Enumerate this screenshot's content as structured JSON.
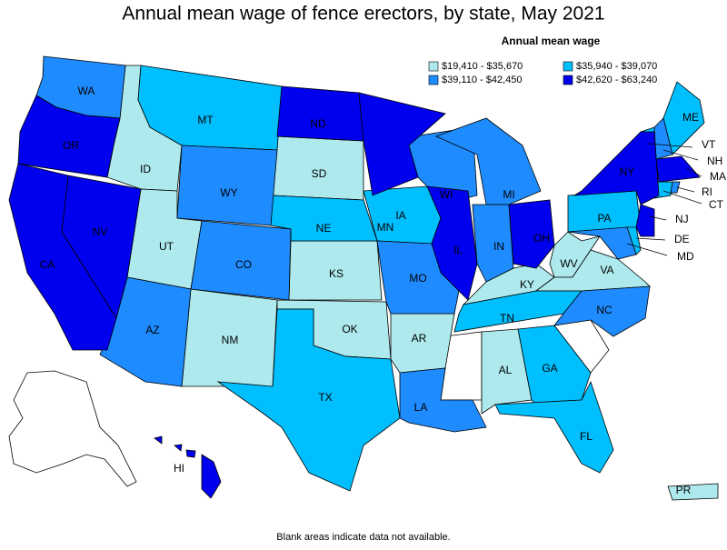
{
  "title": "Annual mean wage of fence erectors, by state, May 2021",
  "legend": {
    "title": "Annual mean wage",
    "classes": [
      {
        "label": "$19,410 - $35,670",
        "color": "#aeeaed",
        "states": [
          "ID",
          "UT",
          "SD",
          "KS",
          "NM",
          "OK",
          "AR",
          "KY",
          "WV",
          "VA",
          "AL",
          "PR"
        ]
      },
      {
        "label": "$35,940 - $39,070",
        "color": "#00bfff",
        "states": [
          "MT",
          "NE",
          "IA",
          "TX",
          "TN",
          "GA",
          "FL",
          "PA",
          "ME",
          "VT",
          "CT",
          "DE"
        ]
      },
      {
        "label": "$39,110 - $42,450",
        "color": "#1e8cff",
        "states": [
          "WA",
          "WY",
          "CO",
          "AZ",
          "MO",
          "WI",
          "MI",
          "IN",
          "LA",
          "NC",
          "NH",
          "RI",
          "MD"
        ]
      },
      {
        "label": "$42,620 - $63,240",
        "color": "#0000ee",
        "states": [
          "OR",
          "NV",
          "CA",
          "ND",
          "MN",
          "IL",
          "OH",
          "NY",
          "MA",
          "NJ",
          "HI"
        ]
      }
    ]
  },
  "note": "Blank areas indicate data not available."
}
